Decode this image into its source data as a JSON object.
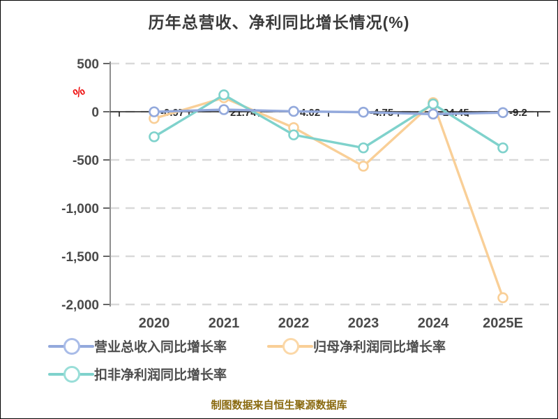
{
  "title": "历年总营收、净利同比增长情况(%)",
  "footer": "制图数据来自恒生聚源数据库",
  "y_axis": {
    "unit_label": "%",
    "unit_color": "#ee0c0c",
    "tick_labels": [
      "500",
      "0",
      "-500",
      "-1,000",
      "-1,500",
      "-2,000"
    ],
    "tick_values": [
      500,
      0,
      -500,
      -1000,
      -1500,
      -2000
    ]
  },
  "x_axis": {
    "categories": [
      "2020",
      "2021",
      "2022",
      "2023",
      "2024",
      "2025E"
    ]
  },
  "legend": {
    "items": [
      {
        "label": "营业总收入同比增长率",
        "color": "#93a9dc",
        "ring": "#a9bce8"
      },
      {
        "label": "归母净利润同比增长率",
        "color": "#f9cf97",
        "ring": "#fbd8a8"
      },
      {
        "label": "扣非净利润同比增长率",
        "color": "#7fd2cc",
        "ring": "#99ded8"
      }
    ]
  },
  "colors": {
    "grid": "#d9d9d9",
    "axis_line": "#8f8f8f",
    "axis_tick": "#666666",
    "zero_line": "#1a1a1a",
    "tick_text": "#4a4a4a",
    "data_label_text": "#2b2b2b"
  },
  "chart_data": {
    "type": "line",
    "categories": [
      "2020",
      "2021",
      "2022",
      "2023",
      "2024",
      "2025E"
    ],
    "series": [
      {
        "name": "营业总收入同比增长率",
        "color": "#93a9dc",
        "values": [
          -0.97,
          21.74,
          4.02,
          -4.75,
          -24.45,
          -9.2
        ],
        "point_labels": [
          "-0.97",
          "21.74",
          "4.02",
          "-4.75",
          "-24.45",
          "-9.2"
        ]
      },
      {
        "name": "归母净利润同比增长率",
        "color": "#f9cf97",
        "values": [
          -70,
          145,
          -165,
          -565,
          95,
          -1930
        ]
      },
      {
        "name": "扣非净利润同比增长率",
        "color": "#7fd2cc",
        "values": [
          -260,
          175,
          -240,
          -375,
          80,
          -375
        ]
      }
    ],
    "ylim": [
      -2000,
      500
    ],
    "y_ticks": [
      500,
      0,
      -500,
      -1000,
      -1500,
      -2000
    ],
    "grid": "horizontal-dashed",
    "legend_position": "bottom",
    "unit": "%"
  }
}
